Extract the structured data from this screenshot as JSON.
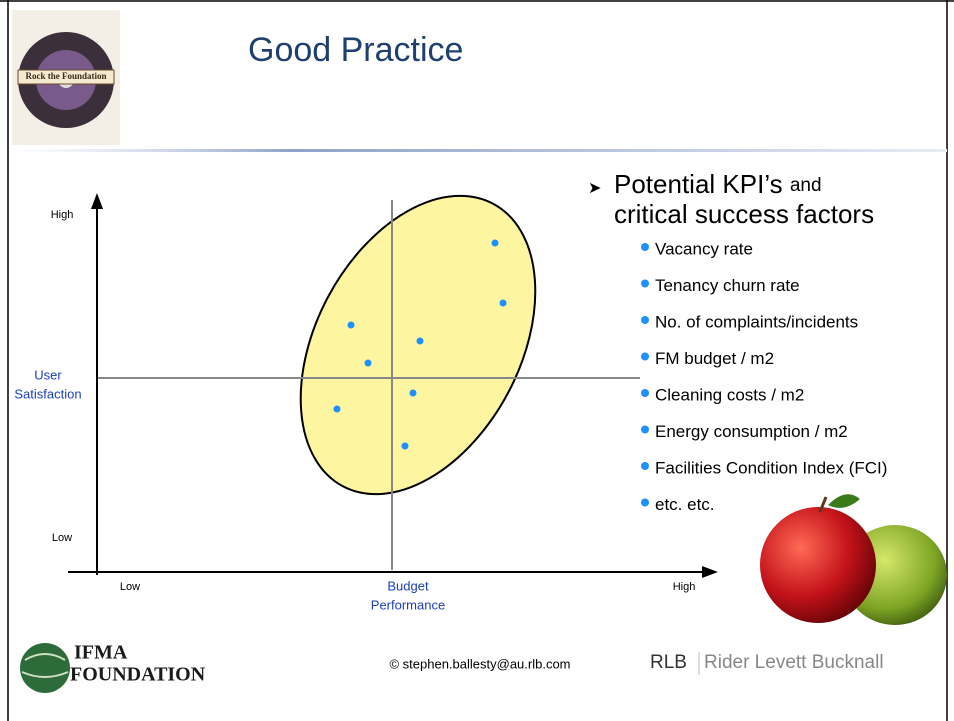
{
  "header": {
    "title": "Good Practice",
    "logo_text": "Rock the Foundation"
  },
  "diagram": {
    "y_axis": {
      "high": "High",
      "low": "Low",
      "title_lines": [
        "User",
        "Satisfaction"
      ]
    },
    "x_axis": {
      "low": "Low",
      "high": "High",
      "title_lines": [
        "Budget",
        "Performance"
      ]
    }
  },
  "bullets": {
    "heading_parts": [
      "Potential KPI’s",
      "and",
      "critical success factors"
    ],
    "items": [
      "Vacancy rate",
      "Tenancy churn rate",
      "No. of complaints/incidents",
      "FM budget / m2",
      "Cleaning costs / m2",
      "Energy consumption / m2",
      "Facilities Condition Index (FCI)",
      "etc. etc."
    ]
  },
  "footer": {
    "left_logo_lines": [
      "IFMA",
      "FOUNDATION"
    ],
    "copyright": "© stephen.ballesty@au.rlb.com",
    "right_logo_abbr": "RLB",
    "right_logo_name": "Rider Levett Bucknall"
  }
}
